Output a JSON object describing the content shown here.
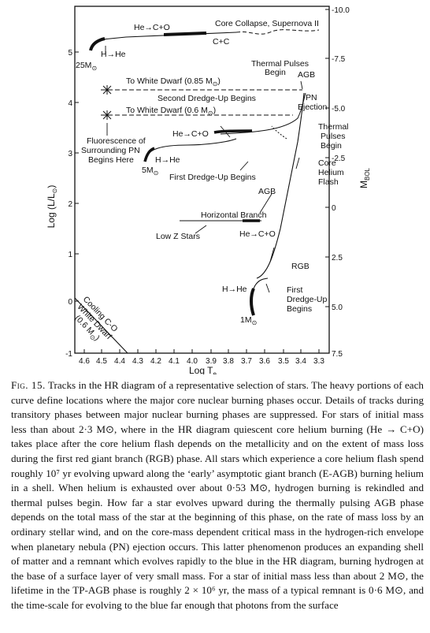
{
  "figure": {
    "x_axis": {
      "label": "Log T",
      "label_sub": "e",
      "ticks": [
        "4.6",
        "4.5",
        "4.4",
        "4.3",
        "4.2",
        "4.1",
        "4.0",
        "3.9",
        "3.8",
        "3.7",
        "3.6",
        "3.5",
        "3.4",
        "3.3"
      ]
    },
    "y_axis_left": {
      "label": "Log (L/L",
      "label_suffix": ")",
      "ticks": [
        "-1",
        "0",
        "1",
        "2",
        "3",
        "4",
        "5"
      ]
    },
    "y_axis_right": {
      "label": "M",
      "label_sub": "BOL",
      "ticks": [
        "-10.0",
        "-7.5",
        "-5.0",
        "-2.5",
        "0",
        "2.5",
        "5.0",
        "7.5"
      ]
    },
    "annotations": {
      "he_co_top": "He→C+O",
      "core_collapse": "Core Collapse, Supernova II",
      "c_c": "C+C",
      "h_he_top": "H→He",
      "mass_25": "25M",
      "thermal_pulses_top_1": "Thermal Pulses",
      "thermal_pulses_top_2": "Begin",
      "agb_top": "AGB",
      "to_wd_085": "To White Dwarf (0.85 M",
      "to_wd_085_end": ")",
      "pn_ejection_1": "PN",
      "pn_ejection_2": "Ejection",
      "second_dredge": "Second Dredge-Up Begins",
      "to_wd_06": "To White Dwarf (0.6 M",
      "to_wd_06_end": ")",
      "fluor_1": "Fluorescence of",
      "fluor_2": "Surrounding PN",
      "fluor_3": "Begins Here",
      "he_co_mid": "He→C+O",
      "tp_right_1": "Thermal",
      "tp_right_2": "Pulses",
      "tp_right_3": "Begin",
      "h_he_mid": "H→He",
      "mass_5": "5M",
      "first_dredge_mid": "First Dredge-Up Begins",
      "core_he_1": "Core",
      "core_he_2": "Helium",
      "core_he_3": "Flash",
      "agb_mid": "AGB",
      "horizontal_branch": "Horizontal Branch",
      "low_z": "Low Z Stars",
      "he_co_low": "He→C+O",
      "rgb": "RGB",
      "h_he_low": "H→He",
      "first_dredge_low_1": "First",
      "first_dredge_low_2": "Dredge-Up",
      "first_dredge_low_3": "Begins",
      "mass_1": "1M",
      "cooling_1": "Cooling C-O",
      "cooling_2": "White Dwarf",
      "cooling_3": "(0.6 M",
      "cooling_3_end": ")"
    }
  },
  "caption": {
    "label": "Fig. 15.",
    "text": "Tracks in the HR diagram of a representative selection of stars. The heavy portions of each curve define locations where the major core nuclear burning phases occur. Details of tracks during transitory phases between major nuclear burning phases are suppressed. For stars of initial mass less than about 2·3 M⊙, where in the HR diagram quiescent core helium burning (He → C+O) takes place after the core helium flash depends on the metallicity and on the extent of mass loss during the first red giant branch (RGB) phase. All stars which experience a core helium flash spend roughly 10⁷ yr evolving upward along the ‘early’ asymptotic giant branch (E-AGB) burning helium in a shell. When helium is exhausted over about 0·53 M⊙, hydrogen burning is rekindled and thermal pulses begin. How far a star evolves upward during the thermally pulsing AGB phase depends on the total mass of the star at the beginning of this phase, on the rate of mass loss by an ordinary stellar wind, and on the core-mass dependent critical mass in the hydrogen-rich envelope when planetary nebula (PN) ejection occurs. This latter phenomenon produces an expanding shell of matter and a remnant which evolves rapidly to the blue in the HR diagram, burning hydrogen at the base of a surface layer of very small mass. For a star of initial mass less than about 2 M⊙, the lifetime in the TP-AGB phase is roughly 2 × 10⁶ yr, the mass of a typical remnant is 0·6 M⊙, and the time-scale for evolving to the blue far enough that photons from the surface"
  }
}
